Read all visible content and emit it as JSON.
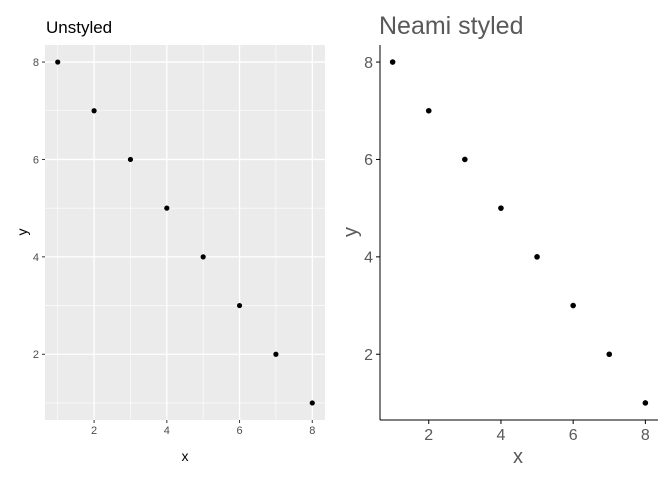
{
  "chart_data": [
    {
      "type": "scatter",
      "title": "Unstyled",
      "xlabel": "x",
      "ylabel": "y",
      "x": [
        1,
        2,
        3,
        4,
        5,
        6,
        7,
        8
      ],
      "y": [
        8,
        7,
        6,
        5,
        4,
        3,
        2,
        1
      ],
      "xlim": [
        0.65,
        8.35
      ],
      "ylim": [
        0.65,
        8.35
      ],
      "xticks": [
        "2",
        "4",
        "6",
        "8"
      ],
      "yticks": [
        "2",
        "4",
        "6",
        "8"
      ],
      "grid": true,
      "colors": {
        "panel": "#ebebeb",
        "grid": "#ffffff",
        "point": "#000000",
        "text": "#000000",
        "tick_text": "#4d4d4d"
      }
    },
    {
      "type": "scatter",
      "title": "Neami styled",
      "xlabel": "x",
      "ylabel": "y",
      "x": [
        1,
        2,
        3,
        4,
        5,
        6,
        7,
        8
      ],
      "y": [
        8,
        7,
        6,
        5,
        4,
        3,
        2,
        1
      ],
      "xlim": [
        0.65,
        8.35
      ],
      "ylim": [
        0.65,
        8.35
      ],
      "xticks": [
        "2",
        "4",
        "6",
        "8"
      ],
      "yticks": [
        "2",
        "4",
        "6",
        "8"
      ],
      "grid": false,
      "colors": {
        "panel": "#ffffff",
        "axis": "#000000",
        "point": "#000000",
        "text": "#595959",
        "tick_text": "#595959"
      }
    }
  ]
}
